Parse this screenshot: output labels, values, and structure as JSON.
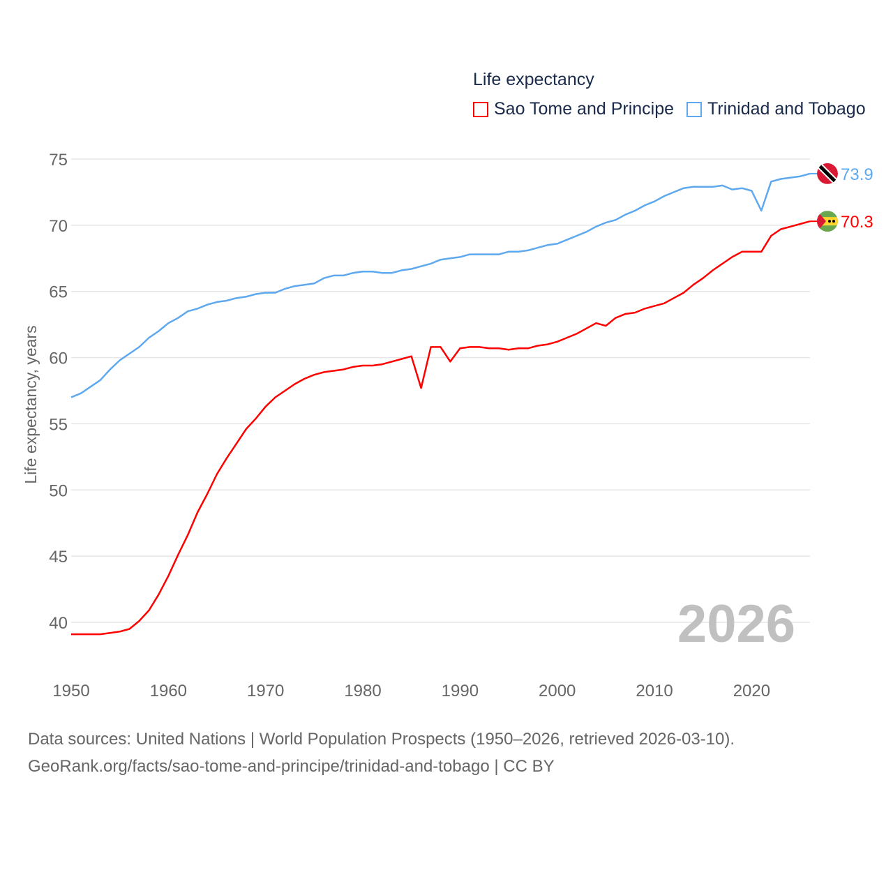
{
  "chart_data": {
    "type": "line",
    "legend_title": "Life expectancy",
    "ylabel": "Life expectancy, years",
    "xlabel": "",
    "xlim": [
      1950,
      2026
    ],
    "ylim": [
      37,
      76
    ],
    "yticks": [
      40,
      45,
      50,
      55,
      60,
      65,
      70,
      75
    ],
    "xticks": [
      1950,
      1960,
      1970,
      1980,
      1990,
      2000,
      2010,
      2020
    ],
    "legend_position": "top-right",
    "grid": true,
    "year_watermark": "2026",
    "x": [
      1950,
      1951,
      1952,
      1953,
      1954,
      1955,
      1956,
      1957,
      1958,
      1959,
      1960,
      1961,
      1962,
      1963,
      1964,
      1965,
      1966,
      1967,
      1968,
      1969,
      1970,
      1971,
      1972,
      1973,
      1974,
      1975,
      1976,
      1977,
      1978,
      1979,
      1980,
      1981,
      1982,
      1983,
      1984,
      1985,
      1986,
      1987,
      1988,
      1989,
      1990,
      1991,
      1992,
      1993,
      1994,
      1995,
      1996,
      1997,
      1998,
      1999,
      2000,
      2001,
      2002,
      2003,
      2004,
      2005,
      2006,
      2007,
      2008,
      2009,
      2010,
      2011,
      2012,
      2013,
      2014,
      2015,
      2016,
      2017,
      2018,
      2019,
      2020,
      2021,
      2022,
      2023,
      2024,
      2025,
      2026
    ],
    "series": [
      {
        "name": "Sao Tome and Principe",
        "color": "#ff0000",
        "end_label": "70.3",
        "values": [
          39.1,
          39.1,
          39.1,
          39.1,
          39.2,
          39.3,
          39.5,
          40.1,
          40.9,
          42.1,
          43.5,
          45.1,
          46.6,
          48.3,
          49.7,
          51.2,
          52.4,
          53.5,
          54.6,
          55.4,
          56.3,
          57.0,
          57.5,
          58.0,
          58.4,
          58.7,
          58.9,
          59.0,
          59.1,
          59.3,
          59.4,
          59.4,
          59.5,
          59.7,
          59.9,
          60.1,
          57.7,
          60.8,
          60.8,
          59.7,
          60.7,
          60.8,
          60.8,
          60.7,
          60.7,
          60.6,
          60.7,
          60.7,
          60.9,
          61.0,
          61.2,
          61.5,
          61.8,
          62.2,
          62.6,
          62.4,
          63.0,
          63.3,
          63.4,
          63.7,
          63.9,
          64.1,
          64.5,
          64.9,
          65.5,
          66.0,
          66.6,
          67.1,
          67.6,
          68.0,
          68.0,
          68.0,
          69.2,
          69.7,
          69.9,
          70.1,
          70.3
        ]
      },
      {
        "name": "Trinidad and Tobago",
        "color": "#5ea8ef",
        "end_label": "73.9",
        "values": [
          57.0,
          57.3,
          57.8,
          58.3,
          59.1,
          59.8,
          60.3,
          60.8,
          61.5,
          62.0,
          62.6,
          63.0,
          63.5,
          63.7,
          64.0,
          64.2,
          64.3,
          64.5,
          64.6,
          64.8,
          64.9,
          64.9,
          65.2,
          65.4,
          65.5,
          65.6,
          66.0,
          66.2,
          66.2,
          66.4,
          66.5,
          66.5,
          66.4,
          66.4,
          66.6,
          66.7,
          66.9,
          67.1,
          67.4,
          67.5,
          67.6,
          67.8,
          67.8,
          67.8,
          67.8,
          68.0,
          68.0,
          68.1,
          68.3,
          68.5,
          68.6,
          68.9,
          69.2,
          69.5,
          69.9,
          70.2,
          70.4,
          70.8,
          71.1,
          71.5,
          71.8,
          72.2,
          72.5,
          72.8,
          72.9,
          72.9,
          72.9,
          73.0,
          72.7,
          72.8,
          72.6,
          71.1,
          73.3,
          73.5,
          73.6,
          73.7,
          73.9
        ]
      }
    ]
  },
  "sources": {
    "line1": "Data sources: United Nations | World Population Prospects (1950–2026, retrieved 2026-03-10).",
    "line2": "GeoRank.org/facts/sao-tome-and-principe/trinidad-and-tobago | CC BY"
  }
}
